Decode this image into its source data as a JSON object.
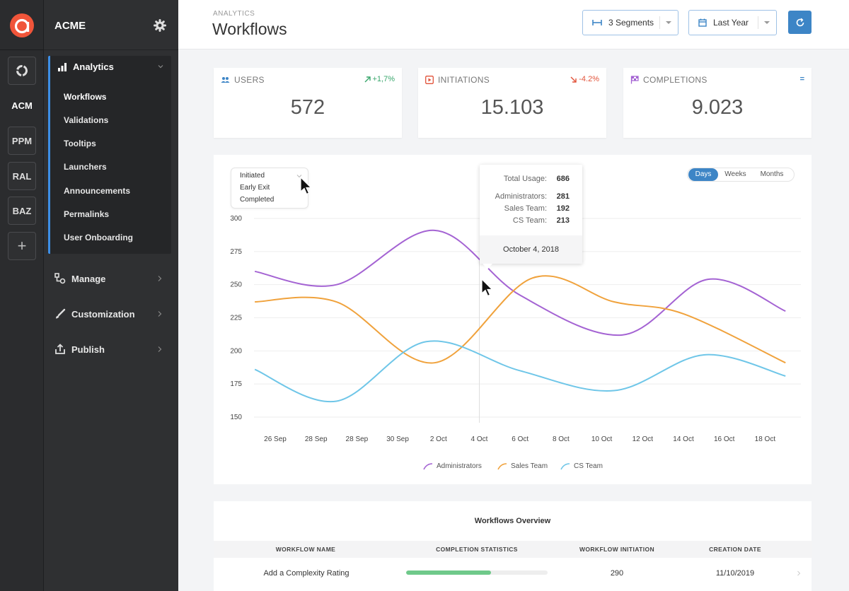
{
  "app": {
    "org_name": "ACME",
    "logo_icon": "app-logo-icon",
    "accent": "#3d85c6"
  },
  "rail": {
    "items": [
      "ACM",
      "PPM",
      "RAL",
      "BAZ"
    ],
    "add_symbol": "+"
  },
  "sidebar": {
    "group_label": "Analytics",
    "sub_items": [
      "Workflows",
      "Validations",
      "Tooltips",
      "Launchers",
      "Announcements",
      "Permalinks",
      "User Onboarding"
    ],
    "active_sub_item": "Workflows",
    "nav_items": [
      "Manage",
      "Customization",
      "Publish"
    ]
  },
  "header": {
    "kicker": "ANALYTICS",
    "title": "Workflows",
    "segments_label": "3 Segments",
    "period_label": "Last Year"
  },
  "stats": [
    {
      "label": "USERS",
      "value": "572",
      "trend": "+1,7%",
      "trend_color": "#3aa76d"
    },
    {
      "label": "INITIATIONS",
      "value": "15.103",
      "trend": "-4.2%",
      "trend_color": "#e2533a"
    },
    {
      "label": "COMPLETIONS",
      "value": "9.023",
      "trend": "=",
      "trend_color": "#3d85c6"
    }
  ],
  "chart_controls": {
    "metric_options": [
      "Initiated",
      "Early Exit",
      "Completed"
    ],
    "tabs": [
      "Days",
      "Weeks",
      "Months"
    ],
    "active_tab": "Days"
  },
  "tooltip": {
    "total_label": "Total Usage:",
    "total_value": "686",
    "rows": [
      {
        "label": "Administrators:",
        "value": "281"
      },
      {
        "label": "Sales Team:",
        "value": "192"
      },
      {
        "label": "CS Team:",
        "value": "213"
      }
    ],
    "date": "October 4, 2018"
  },
  "chart_data": {
    "type": "line",
    "categories": [
      "26 Sep",
      "28 Sep",
      "28 Sep",
      "30 Sep",
      "2 Oct",
      "4 Oct",
      "6 Oct",
      "8 Oct",
      "10 Oct",
      "12 Oct",
      "14 Oct",
      "16 Oct",
      "18 Oct"
    ],
    "ylim": [
      150,
      300
    ],
    "yticks": [
      300,
      275,
      250,
      225,
      200,
      175,
      150
    ],
    "grid": true,
    "legend_position": "bottom",
    "series": [
      {
        "name": "Administrators",
        "color": "#a463d3",
        "points": [
          [
            -0.5,
            260
          ],
          [
            1.5,
            250
          ],
          [
            3.9,
            291
          ],
          [
            6.0,
            242
          ],
          [
            8.5,
            212
          ],
          [
            10.6,
            254
          ],
          [
            12.5,
            230
          ]
        ]
      },
      {
        "name": "Sales Team",
        "color": "#f0a23c",
        "points": [
          [
            -0.5,
            237
          ],
          [
            1.5,
            237
          ],
          [
            3.9,
            191
          ],
          [
            6.3,
            255
          ],
          [
            8.3,
            237
          ],
          [
            10.0,
            228
          ],
          [
            12.5,
            191
          ]
        ]
      },
      {
        "name": "CS Team",
        "color": "#6fc6e8",
        "points": [
          [
            -0.5,
            186
          ],
          [
            1.5,
            162
          ],
          [
            3.7,
            207
          ],
          [
            6.0,
            185
          ],
          [
            8.3,
            170
          ],
          [
            10.5,
            197
          ],
          [
            12.5,
            181
          ]
        ]
      }
    ]
  },
  "table": {
    "title": "Workflows Overview",
    "headers": [
      "WORKFLOW NAME",
      "COMPLETION STATISTICS",
      "WORKFLOW INITIATION",
      "CREATION DATE"
    ],
    "rows": [
      {
        "name": "Add a Complexity Rating",
        "completion": 0.6,
        "initiation": "290",
        "created": "11/10/2019"
      }
    ]
  }
}
